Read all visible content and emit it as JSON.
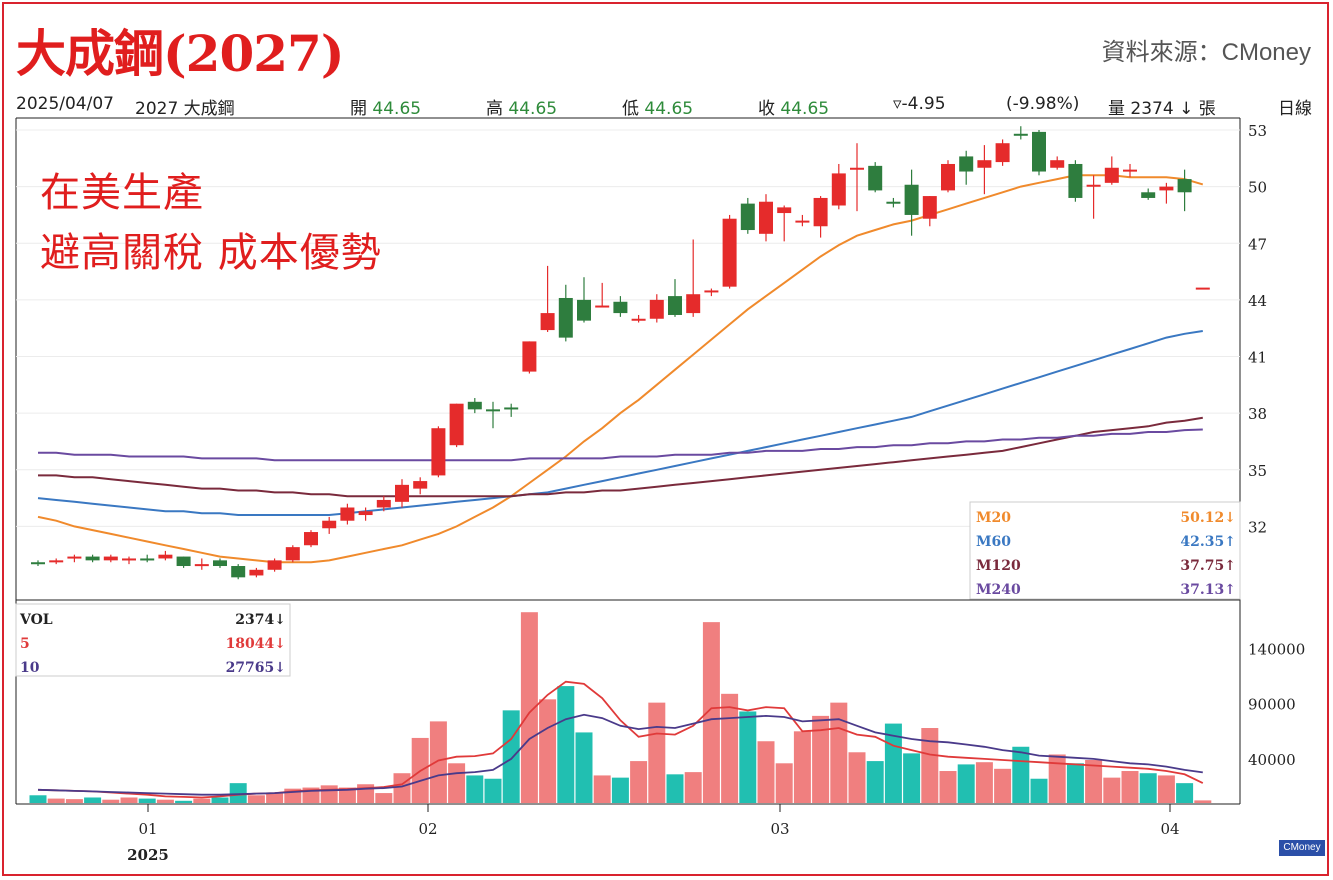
{
  "header": {
    "title": "大成鋼(2027)",
    "source": "資料來源：CMoney"
  },
  "info_bar": {
    "date": "2025/04/07",
    "stock": "2027 大成鋼",
    "open_label": "開",
    "open": "44.65",
    "high_label": "高",
    "high": "44.65",
    "low_label": "低",
    "low": "44.65",
    "close_label": "收",
    "close": "44.65",
    "change": "▿-4.95",
    "change_pct": "(-9.98%)",
    "volume": "量 2374 ↓ 張",
    "period": "日線"
  },
  "headline": {
    "line1": "在美生產",
    "line2": "避高關稅 成本優勢"
  },
  "legend_price": [
    {
      "label": "M20",
      "value": "50.12↓",
      "color": "#f08a2c"
    },
    {
      "label": "M60",
      "value": "42.35↑",
      "color": "#3a78c2"
    },
    {
      "label": "M120",
      "value": "37.75↑",
      "color": "#7a2a3c"
    },
    {
      "label": "M240",
      "value": "37.13↑",
      "color": "#6a4aa0"
    }
  ],
  "legend_volume": [
    {
      "label": "VOL",
      "value": "2374↓",
      "color": "#222222"
    },
    {
      "label": "5",
      "value": "18044↓",
      "color": "#e03a3a"
    },
    {
      "label": "10",
      "value": "27765↓",
      "color": "#4a3a8a"
    }
  ],
  "logo": "CMoney",
  "chart_data": [
    {
      "type": "candlestick",
      "ylim": [
        29,
        53
      ],
      "y_ticks": [
        "53",
        "50",
        "47",
        "44",
        "41",
        "38",
        "35",
        "32"
      ],
      "x_ticks": [
        "01",
        "02",
        "03",
        "04"
      ],
      "x_sublabel": "2025",
      "colors": {
        "up": "#e52b2b",
        "down": "#2e7d3e",
        "m20": "#f08a2c",
        "m60": "#3a78c2",
        "m120": "#7a2a3c",
        "m240": "#6a4aa0"
      },
      "candles": [
        [
          30.1,
          30.2,
          29.9,
          30.0
        ],
        [
          30.1,
          30.3,
          30.0,
          30.2
        ],
        [
          30.3,
          30.5,
          30.1,
          30.4
        ],
        [
          30.4,
          30.5,
          30.1,
          30.2
        ],
        [
          30.2,
          30.5,
          30.1,
          30.4
        ],
        [
          30.2,
          30.4,
          30.0,
          30.3
        ],
        [
          30.3,
          30.5,
          30.1,
          30.2
        ],
        [
          30.3,
          30.7,
          30.2,
          30.5
        ],
        [
          30.4,
          30.4,
          29.8,
          29.9
        ],
        [
          30.0,
          30.3,
          29.7,
          30.0
        ],
        [
          30.2,
          30.3,
          29.8,
          29.9
        ],
        [
          29.9,
          30.0,
          29.2,
          29.3
        ],
        [
          29.4,
          29.8,
          29.3,
          29.7
        ],
        [
          29.7,
          30.3,
          29.6,
          30.2
        ],
        [
          30.2,
          31.0,
          30.1,
          30.9
        ],
        [
          31.0,
          31.8,
          30.9,
          31.7
        ],
        [
          31.9,
          32.5,
          31.6,
          32.3
        ],
        [
          32.3,
          33.2,
          32.1,
          33.0
        ],
        [
          32.6,
          33.0,
          32.3,
          32.8
        ],
        [
          33.0,
          33.6,
          32.8,
          33.4
        ],
        [
          33.3,
          34.5,
          33.0,
          34.2
        ],
        [
          34.0,
          34.6,
          33.7,
          34.4
        ],
        [
          34.7,
          37.3,
          34.6,
          37.2
        ],
        [
          36.3,
          38.5,
          36.2,
          38.5
        ],
        [
          38.6,
          38.8,
          38.0,
          38.2
        ],
        [
          38.2,
          38.6,
          37.2,
          38.1
        ],
        [
          38.3,
          38.5,
          37.8,
          38.2
        ],
        [
          40.2,
          41.8,
          40.1,
          41.8
        ],
        [
          42.4,
          45.8,
          42.3,
          43.3
        ],
        [
          44.1,
          44.8,
          41.8,
          42.0
        ],
        [
          44.0,
          45.2,
          42.8,
          42.9
        ],
        [
          43.7,
          44.9,
          43.6,
          43.7
        ],
        [
          43.9,
          44.2,
          43.1,
          43.3
        ],
        [
          43.0,
          43.2,
          42.8,
          43.0
        ],
        [
          43.0,
          44.3,
          42.8,
          44.0
        ],
        [
          44.2,
          45.1,
          43.1,
          43.2
        ],
        [
          43.3,
          47.2,
          43.1,
          44.3
        ],
        [
          44.4,
          44.6,
          44.2,
          44.5
        ],
        [
          44.7,
          48.5,
          44.6,
          48.3
        ],
        [
          49.1,
          49.4,
          47.5,
          47.7
        ],
        [
          47.5,
          49.6,
          47.1,
          49.2
        ],
        [
          48.6,
          49.0,
          47.1,
          48.9
        ],
        [
          48.1,
          48.5,
          47.9,
          48.2
        ],
        [
          47.9,
          49.5,
          47.3,
          49.4
        ],
        [
          49.0,
          51.2,
          48.8,
          50.7
        ],
        [
          51.0,
          52.3,
          48.7,
          51.0
        ],
        [
          51.1,
          51.3,
          49.7,
          49.8
        ],
        [
          49.2,
          49.4,
          48.9,
          49.1
        ],
        [
          50.1,
          50.9,
          47.4,
          48.5
        ],
        [
          48.3,
          49.5,
          47.9,
          49.5
        ],
        [
          49.8,
          51.4,
          49.7,
          51.2
        ],
        [
          51.6,
          51.9,
          50.1,
          50.8
        ],
        [
          51.0,
          52.2,
          49.6,
          51.4
        ],
        [
          51.3,
          52.5,
          51.1,
          52.3
        ],
        [
          52.8,
          53.2,
          52.5,
          52.7
        ],
        [
          52.9,
          53.0,
          50.6,
          50.8
        ],
        [
          51.0,
          51.6,
          50.9,
          51.4
        ],
        [
          51.2,
          51.4,
          49.2,
          49.4
        ],
        [
          50.0,
          50.6,
          48.3,
          50.1
        ],
        [
          50.2,
          51.6,
          50.1,
          51.0
        ],
        [
          50.8,
          51.2,
          50.5,
          50.9
        ],
        [
          49.7,
          49.9,
          49.3,
          49.4
        ],
        [
          49.8,
          50.2,
          49.1,
          50.0
        ],
        [
          50.4,
          50.9,
          48.7,
          49.7
        ],
        [
          44.65,
          44.65,
          44.65,
          44.65
        ]
      ],
      "series": [
        {
          "name": "M20",
          "values": [
            32.5,
            32.3,
            32.0,
            31.8,
            31.6,
            31.4,
            31.2,
            31.0,
            30.8,
            30.6,
            30.4,
            30.3,
            30.2,
            30.1,
            30.1,
            30.1,
            30.2,
            30.4,
            30.6,
            30.8,
            31.0,
            31.3,
            31.6,
            32.0,
            32.5,
            33.0,
            33.6,
            34.3,
            35.0,
            35.7,
            36.5,
            37.2,
            38.0,
            38.7,
            39.5,
            40.3,
            41.1,
            41.9,
            42.7,
            43.5,
            44.2,
            44.9,
            45.6,
            46.3,
            46.9,
            47.4,
            47.7,
            48.0,
            48.2,
            48.5,
            48.8,
            49.1,
            49.4,
            49.7,
            50.0,
            50.2,
            50.4,
            50.6,
            50.6,
            50.6,
            50.5,
            50.5,
            50.5,
            50.4,
            50.12
          ]
        },
        {
          "name": "M60",
          "values": [
            33.5,
            33.4,
            33.3,
            33.2,
            33.1,
            33.0,
            32.9,
            32.8,
            32.8,
            32.7,
            32.7,
            32.6,
            32.6,
            32.6,
            32.6,
            32.6,
            32.6,
            32.7,
            32.8,
            32.9,
            33.0,
            33.1,
            33.2,
            33.3,
            33.4,
            33.5,
            33.6,
            33.7,
            33.8,
            34.0,
            34.2,
            34.4,
            34.6,
            34.8,
            35.0,
            35.2,
            35.4,
            35.6,
            35.8,
            36.0,
            36.2,
            36.4,
            36.6,
            36.8,
            37.0,
            37.2,
            37.4,
            37.6,
            37.8,
            38.1,
            38.4,
            38.7,
            39.0,
            39.3,
            39.6,
            39.9,
            40.2,
            40.5,
            40.8,
            41.1,
            41.4,
            41.7,
            42.0,
            42.2,
            42.35
          ]
        },
        {
          "name": "M120",
          "values": [
            34.7,
            34.7,
            34.6,
            34.6,
            34.5,
            34.4,
            34.3,
            34.2,
            34.1,
            34.0,
            34.0,
            33.9,
            33.9,
            33.8,
            33.8,
            33.7,
            33.7,
            33.6,
            33.6,
            33.6,
            33.6,
            33.6,
            33.6,
            33.6,
            33.6,
            33.6,
            33.6,
            33.7,
            33.7,
            33.8,
            33.8,
            33.9,
            33.9,
            34.0,
            34.1,
            34.2,
            34.3,
            34.4,
            34.5,
            34.6,
            34.7,
            34.8,
            34.9,
            35.0,
            35.1,
            35.2,
            35.3,
            35.4,
            35.5,
            35.6,
            35.7,
            35.8,
            35.9,
            36.0,
            36.2,
            36.4,
            36.6,
            36.8,
            37.0,
            37.1,
            37.2,
            37.3,
            37.5,
            37.6,
            37.75
          ]
        },
        {
          "name": "M240",
          "values": [
            35.9,
            35.9,
            35.8,
            35.8,
            35.8,
            35.7,
            35.7,
            35.7,
            35.7,
            35.6,
            35.6,
            35.6,
            35.6,
            35.5,
            35.5,
            35.5,
            35.5,
            35.5,
            35.5,
            35.5,
            35.5,
            35.5,
            35.5,
            35.5,
            35.5,
            35.5,
            35.5,
            35.6,
            35.6,
            35.6,
            35.6,
            35.6,
            35.7,
            35.7,
            35.7,
            35.8,
            35.8,
            35.8,
            35.9,
            35.9,
            36.0,
            36.0,
            36.0,
            36.1,
            36.1,
            36.2,
            36.2,
            36.3,
            36.3,
            36.4,
            36.4,
            36.5,
            36.5,
            36.6,
            36.6,
            36.7,
            36.7,
            36.8,
            36.8,
            36.9,
            36.9,
            37.0,
            37.0,
            37.1,
            37.13
          ]
        }
      ]
    },
    {
      "type": "bar",
      "ylim": [
        0,
        175000
      ],
      "y_ticks": [
        "140000",
        "90000",
        "40000"
      ],
      "volumes": [
        7000,
        4000,
        3500,
        5000,
        3000,
        5000,
        4000,
        3000,
        2000,
        4000,
        5000,
        18000,
        7000,
        9000,
        13000,
        14000,
        16000,
        14000,
        17000,
        9000,
        27000,
        59000,
        74000,
        36000,
        25000,
        22000,
        84000,
        173000,
        94000,
        106000,
        64000,
        25000,
        23000,
        38000,
        91000,
        26000,
        28000,
        164000,
        99000,
        83000,
        56000,
        36000,
        65000,
        79000,
        91000,
        46000,
        38000,
        72000,
        45000,
        68000,
        29000,
        35000,
        37000,
        31000,
        51000,
        22000,
        44000,
        36000,
        39000,
        23000,
        29000,
        27000,
        25000,
        18000,
        2374
      ],
      "series": [
        {
          "name": "5",
          "values": [
            12000,
            11500,
            11000,
            10500,
            9500,
            8500,
            7500,
            6000,
            5500,
            5000,
            6000,
            7500,
            8500,
            9000,
            10500,
            11500,
            12000,
            12500,
            13500,
            14500,
            17000,
            29000,
            38500,
            42000,
            42500,
            45000,
            58000,
            82000,
            98000,
            110000,
            108000,
            95000,
            75000,
            60000,
            63000,
            62000,
            70000,
            86000,
            87000,
            84000,
            87000,
            86000,
            65000,
            66000,
            68000,
            62000,
            60000,
            52000,
            48000,
            44000,
            42000,
            41000,
            40000,
            39000,
            38000,
            37000,
            36000,
            35000,
            34000,
            33000,
            32000,
            31000,
            29000,
            26000,
            18044
          ]
        },
        {
          "name": "10",
          "values": [
            12000,
            11500,
            11000,
            10500,
            10000,
            9500,
            9000,
            8500,
            8000,
            7500,
            7500,
            8000,
            8500,
            9000,
            10000,
            11000,
            11500,
            12000,
            13000,
            13500,
            15000,
            20000,
            25000,
            27000,
            28000,
            30000,
            40000,
            58000,
            68000,
            76000,
            80000,
            77000,
            70000,
            67000,
            69000,
            68000,
            72000,
            76000,
            77000,
            78000,
            79000,
            78000,
            74000,
            75000,
            76000,
            70000,
            64000,
            61000,
            58000,
            56000,
            55000,
            53000,
            51000,
            48000,
            46000,
            43000,
            42000,
            41000,
            40000,
            38000,
            36000,
            35000,
            33000,
            30000,
            27765
          ]
        }
      ]
    }
  ]
}
